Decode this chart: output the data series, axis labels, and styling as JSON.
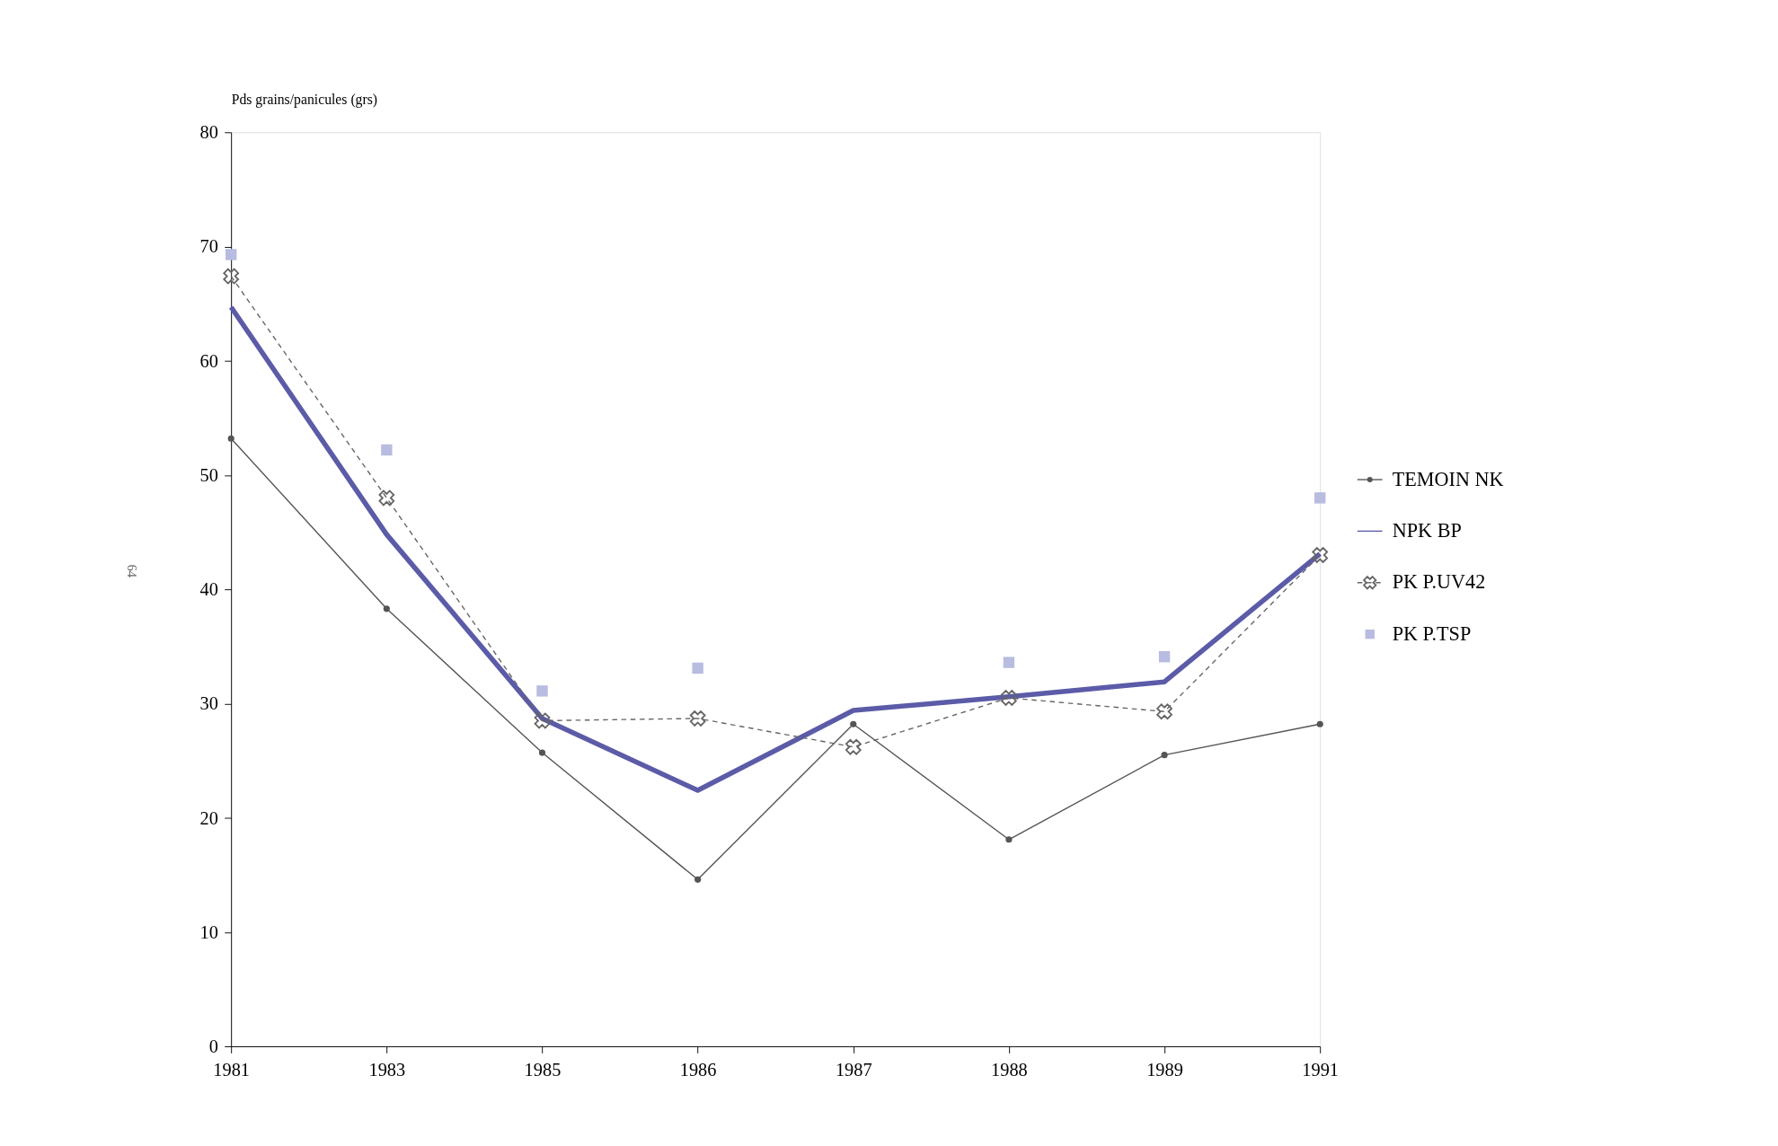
{
  "chart_data": {
    "type": "line",
    "ylabel": "Pds grains/panicules (grs)",
    "categories": [
      "1981",
      "1983",
      "1985",
      "1986",
      "1987",
      "1988",
      "1989",
      "1991"
    ],
    "ylim": [
      0,
      80
    ],
    "yticks": [
      0,
      10,
      20,
      30,
      40,
      50,
      60,
      70,
      80
    ],
    "grid": false,
    "legend": "right",
    "annotations": [
      "64"
    ],
    "series": [
      {
        "name": "TEMOIN NK",
        "color": "#555555",
        "marker": "circle",
        "line_style": "solid",
        "values": [
          53.2,
          38.3,
          25.7,
          14.6,
          28.2,
          18.1,
          25.5,
          28.2
        ]
      },
      {
        "name": "NPK BP",
        "color": "#5b5ba8",
        "marker": "none",
        "line_style": "solid",
        "values": [
          64.7,
          44.8,
          28.7,
          22.4,
          29.4,
          30.6,
          31.9,
          43.1
        ]
      },
      {
        "name": "PK P.UV42",
        "color": "#666666",
        "marker": "cross",
        "line_style": "dashed",
        "values": [
          67.4,
          48.0,
          28.5,
          28.7,
          26.2,
          30.5,
          29.3,
          43.0
        ]
      },
      {
        "name": "PK P.TSP",
        "color": "#b8bce0",
        "type": "scatter",
        "marker": "square",
        "values": [
          69.3,
          52.2,
          31.1,
          33.1,
          null,
          33.6,
          34.1,
          48.0
        ]
      }
    ]
  }
}
